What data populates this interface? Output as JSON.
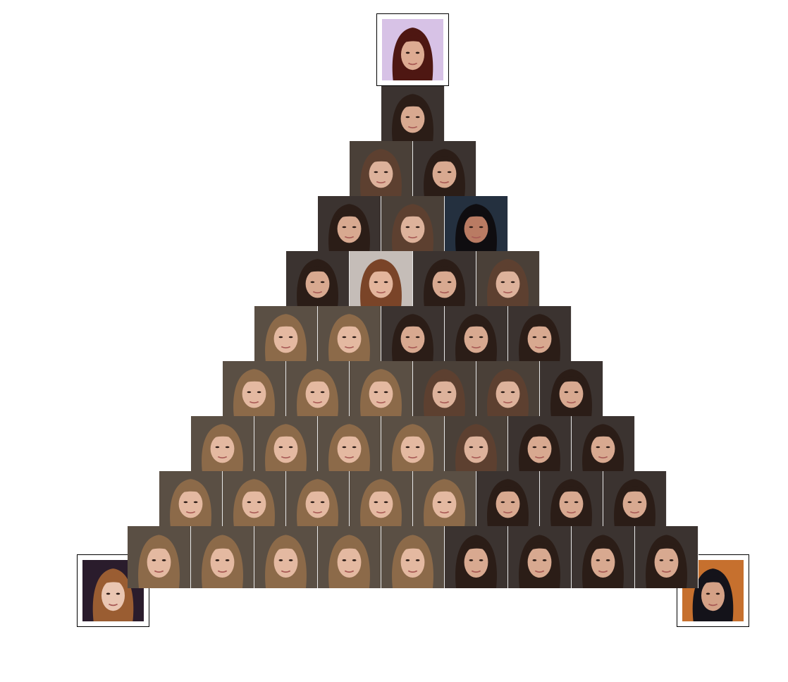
{
  "corners": {
    "top": {
      "bg": "#d7c2e6",
      "hair": "#4e1712",
      "skin": "#ddab92"
    },
    "left": {
      "bg": "#2a1c2c",
      "hair": "#9a5d32",
      "skin": "#eac6b2"
    },
    "right": {
      "bg": "#c6702e",
      "hair": "#14131a",
      "skin": "#d4a186"
    }
  },
  "triangle": {
    "rows": [
      [
        "dark"
      ],
      [
        "light-bangs",
        "dark"
      ],
      [
        "dark",
        "light-bangs",
        "black"
      ],
      [
        "dark",
        "auburn",
        "dark",
        "light-bangs"
      ],
      [
        "blonde",
        "blonde",
        "dark",
        "dark",
        "dark"
      ],
      [
        "blonde",
        "blonde",
        "blonde",
        "light-bangs",
        "light-bangs",
        "dark"
      ],
      [
        "blonde",
        "blonde",
        "blonde",
        "blonde",
        "light-bangs",
        "dark",
        "dark"
      ],
      [
        "blonde",
        "blonde",
        "blonde",
        "blonde",
        "blonde",
        "dark",
        "dark",
        "dark"
      ],
      [
        "blonde",
        "blonde",
        "blonde",
        "blonde",
        "blonde",
        "dark",
        "dark",
        "dark",
        "dark"
      ]
    ]
  },
  "palettes": {
    "dark": {
      "bg": "#3b3330",
      "hair": "#2b1d17",
      "skin": "#d8a990"
    },
    "light-bangs": {
      "bg": "#4a4038",
      "hair": "#5d4030",
      "skin": "#ddb29b"
    },
    "black": {
      "bg": "#24303f",
      "hair": "#0f0d10",
      "skin": "#b97b63"
    },
    "auburn": {
      "bg": "#c5bdb8",
      "hair": "#7a4428",
      "skin": "#e3b59c"
    },
    "blonde": {
      "bg": "#5a4f44",
      "hair": "#8c6a49",
      "skin": "#e4b9a1"
    }
  }
}
